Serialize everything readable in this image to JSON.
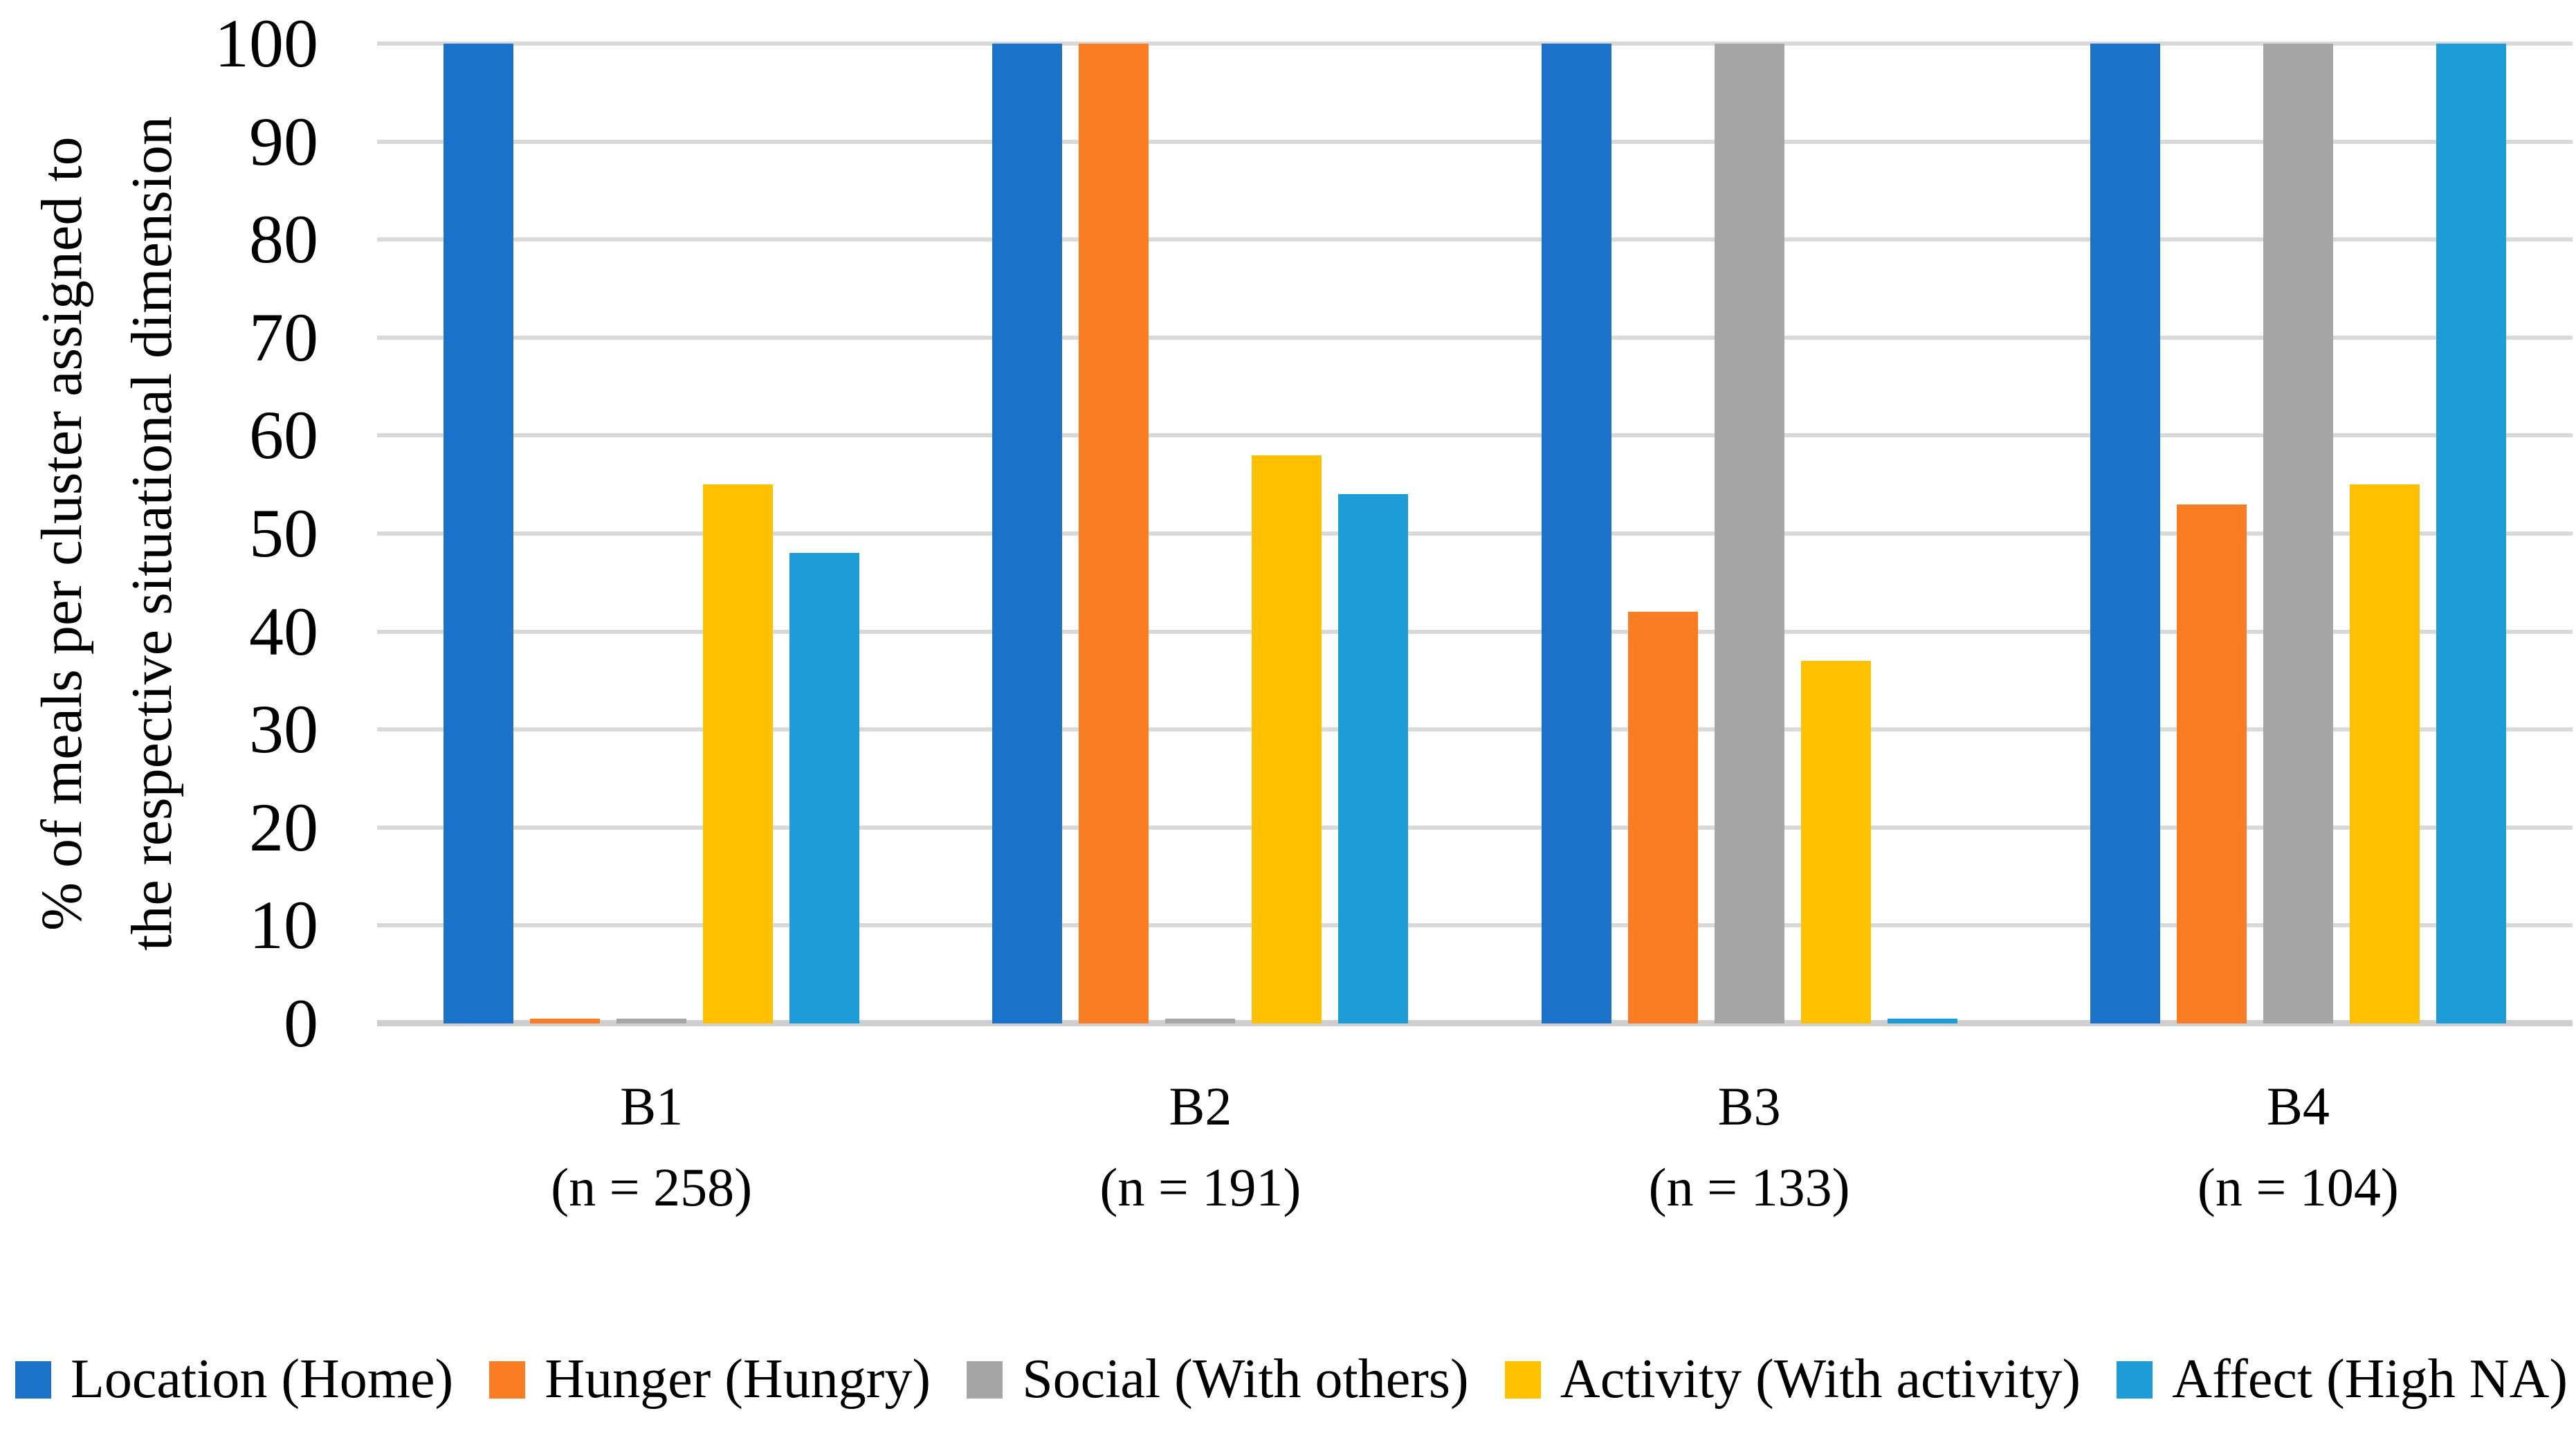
{
  "figure": {
    "background": "#ffffff"
  },
  "chart_data": {
    "type": "bar",
    "title": "",
    "ylabel_lines": [
      "% of meals per cluster assigned to",
      "the respective situational dimension"
    ],
    "ylim": [
      0,
      100
    ],
    "yticks": [
      0,
      10,
      20,
      30,
      40,
      50,
      60,
      70,
      80,
      90,
      100
    ],
    "grid": "horizontal",
    "gridline_color": "#D9D9D9",
    "axisline_color": "#CFCFCF",
    "legend_position": "bottom",
    "categories": [
      {
        "label": "B1",
        "sub": "(n = 258)"
      },
      {
        "label": "B2",
        "sub": "(n = 191)"
      },
      {
        "label": "B3",
        "sub": "(n = 133)"
      },
      {
        "label": "B4",
        "sub": "(n = 104)"
      }
    ],
    "series": [
      {
        "name": "Location (Home)",
        "color": "#1B72C8",
        "values": [
          100,
          100,
          100,
          100
        ]
      },
      {
        "name": "Hunger (Hungry)",
        "color": "#FB7D23",
        "values": [
          0.5,
          100,
          42,
          53
        ]
      },
      {
        "name": "Social (With others)",
        "color": "#A6A6A6",
        "values": [
          0.5,
          0.5,
          100,
          100
        ]
      },
      {
        "name": "Activity (With activity)",
        "color": "#FFC000",
        "values": [
          55,
          58,
          37,
          55
        ]
      },
      {
        "name": "Affect (High NA)",
        "color": "#1E9CD8",
        "values": [
          48,
          54,
          0.5,
          100
        ]
      }
    ]
  }
}
